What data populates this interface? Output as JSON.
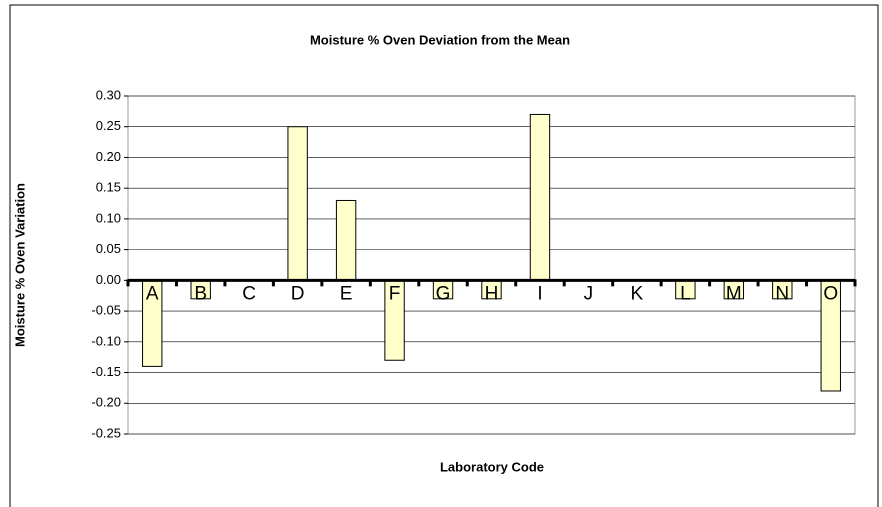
{
  "chart_data": {
    "type": "bar",
    "title": "Moisture % Oven Deviation from the Mean",
    "x_label": "Laboratory Code",
    "y_label": "Moisture % Oven Variation",
    "categories": [
      "A",
      "B",
      "C",
      "D",
      "E",
      "F",
      "G",
      "H",
      "I",
      "J",
      "K",
      "L",
      "M",
      "N",
      "O"
    ],
    "values": [
      -0.14,
      -0.03,
      0,
      0.25,
      0.13,
      -0.13,
      -0.03,
      -0.03,
      0.27,
      0,
      0,
      -0.03,
      -0.03,
      -0.03,
      -0.18
    ],
    "color": "#ffffcc",
    "ylim": [
      -0.25,
      0.3
    ],
    "yticks": [
      {
        "value": 0.3,
        "label": "0.30"
      },
      {
        "value": 0.25,
        "label": "0.25"
      },
      {
        "value": 0.2,
        "label": "0.20"
      },
      {
        "value": 0.15,
        "label": "0.15"
      },
      {
        "value": 0.1,
        "label": "0.10"
      },
      {
        "value": 0.05,
        "label": "0.05"
      },
      {
        "value": 0,
        "label": "0.00"
      },
      {
        "value": -0.05,
        "label": "-0.05"
      },
      {
        "value": -0.1,
        "label": "-0.10"
      },
      {
        "value": -0.15,
        "label": "-0.15"
      },
      {
        "value": -0.2,
        "label": "-0.20"
      },
      {
        "value": -0.25,
        "label": "-0.25"
      }
    ],
    "grid": true
  }
}
